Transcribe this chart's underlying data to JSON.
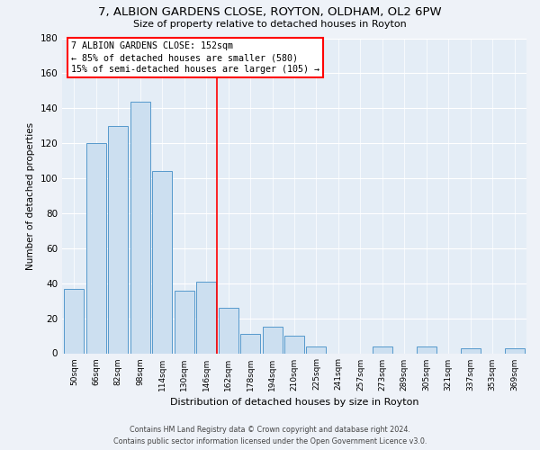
{
  "title": "7, ALBION GARDENS CLOSE, ROYTON, OLDHAM, OL2 6PW",
  "subtitle": "Size of property relative to detached houses in Royton",
  "xlabel": "Distribution of detached houses by size in Royton",
  "ylabel": "Number of detached properties",
  "bar_labels": [
    "50sqm",
    "66sqm",
    "82sqm",
    "98sqm",
    "114sqm",
    "130sqm",
    "146sqm",
    "162sqm",
    "178sqm",
    "194sqm",
    "210sqm",
    "225sqm",
    "241sqm",
    "257sqm",
    "273sqm",
    "289sqm",
    "305sqm",
    "321sqm",
    "337sqm",
    "353sqm",
    "369sqm"
  ],
  "bar_values": [
    37,
    120,
    130,
    144,
    104,
    36,
    41,
    26,
    11,
    15,
    10,
    4,
    0,
    0,
    4,
    0,
    4,
    0,
    3,
    0,
    3
  ],
  "bar_color": "#ccdff0",
  "bar_edge_color": "#5599cc",
  "annotation_title": "7 ALBION GARDENS CLOSE: 152sqm",
  "annotation_line1": "← 85% of detached houses are smaller (580)",
  "annotation_line2": "15% of semi-detached houses are larger (105) →",
  "ylim": [
    0,
    180
  ],
  "yticks": [
    0,
    20,
    40,
    60,
    80,
    100,
    120,
    140,
    160,
    180
  ],
  "footer_line1": "Contains HM Land Registry data © Crown copyright and database right 2024.",
  "footer_line2": "Contains public sector information licensed under the Open Government Licence v3.0.",
  "bg_color": "#eef2f8",
  "plot_bg_color": "#e4edf6",
  "grid_color": "#ffffff"
}
